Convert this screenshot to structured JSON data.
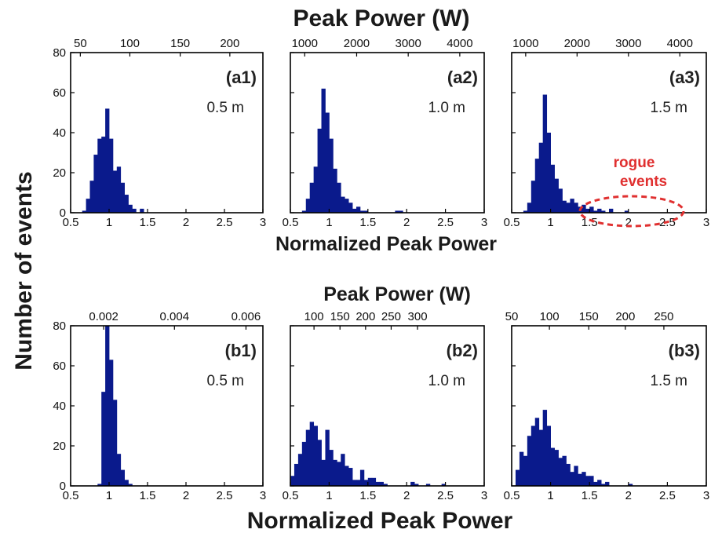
{
  "titles": {
    "top_x": "Peak Power (W)",
    "y": "Number of events",
    "middle_x": "Normalized Peak Power",
    "bottom_top_x": "Peak Power (W)",
    "bottom_x": "Normalized Peak Power"
  },
  "annotation": {
    "line1": "rogue",
    "line2": "events",
    "color": "#e03030"
  },
  "colors": {
    "bar": "#0a1a8c",
    "axis": "#000000"
  },
  "chart_data": [
    {
      "type": "bar",
      "panel": "(a1)",
      "distance": "0.5 m",
      "xlim": [
        0.5,
        3
      ],
      "ylim": [
        0,
        80
      ],
      "x_ticks": [
        "0.5",
        "1",
        "1.5",
        "2",
        "2.5",
        "3"
      ],
      "y_ticks": [
        "0",
        "20",
        "40",
        "60",
        "80"
      ],
      "top_ticks": [
        {
          "v": 0.626,
          "l": "50"
        },
        {
          "v": 1.27,
          "l": "100"
        },
        {
          "v": 1.925,
          "l": "150"
        },
        {
          "v": 2.57,
          "l": "200"
        }
      ],
      "bin_start": 0.65,
      "bin_width": 0.05,
      "values": [
        1,
        7,
        16,
        29,
        37,
        38,
        52,
        37,
        21,
        23,
        15,
        9,
        4,
        2,
        0,
        2
      ]
    },
    {
      "type": "bar",
      "panel": "(a2)",
      "distance": "1.0 m",
      "xlim": [
        0.5,
        3
      ],
      "ylim": [
        0,
        80
      ],
      "x_ticks": [
        "0.5",
        "1",
        "1.5",
        "2",
        "2.5",
        "3"
      ],
      "y_ticks": [],
      "top_ticks": [
        {
          "v": 0.685,
          "l": "1000"
        },
        {
          "v": 1.355,
          "l": "2000"
        },
        {
          "v": 2.02,
          "l": "3000"
        },
        {
          "v": 2.685,
          "l": "4000"
        }
      ],
      "bin_start": 0.6,
      "bin_width": 0.05,
      "values": [
        0,
        1,
        7,
        15,
        23,
        42,
        62,
        50,
        37,
        22,
        15,
        8,
        7,
        5,
        2,
        3,
        1,
        1,
        0,
        0,
        0,
        0,
        0,
        0,
        0,
        1,
        1
      ]
    },
    {
      "type": "bar",
      "panel": "(a3)",
      "distance": "1.5 m",
      "xlim": [
        0.5,
        3
      ],
      "ylim": [
        0,
        80
      ],
      "x_ticks": [
        "0.5",
        "1",
        "1.5",
        "2",
        "2.5",
        "3"
      ],
      "y_ticks": [],
      "top_ticks": [
        {
          "v": 0.68,
          "l": "1000"
        },
        {
          "v": 1.34,
          "l": "2000"
        },
        {
          "v": 2.0,
          "l": "3000"
        },
        {
          "v": 2.66,
          "l": "4000"
        }
      ],
      "bin_start": 0.6,
      "bin_width": 0.05,
      "values": [
        0,
        1,
        5,
        16,
        27,
        35,
        59,
        40,
        24,
        17,
        12,
        6,
        5,
        7,
        5,
        3,
        4,
        2,
        3,
        1,
        2,
        1,
        0,
        2,
        0,
        0,
        0,
        1
      ]
    },
    {
      "type": "bar",
      "panel": "(b1)",
      "distance": "0.5 m",
      "xlim": [
        0.5,
        3
      ],
      "ylim": [
        0,
        80
      ],
      "x_ticks": [
        "0.5",
        "1",
        "1.5",
        "2",
        "2.5",
        "3"
      ],
      "y_ticks": [
        "0",
        "20",
        "40",
        "60",
        "80"
      ],
      "top_ticks": [
        {
          "v": 0.93,
          "l": "0.002"
        },
        {
          "v": 1.85,
          "l": "0.004"
        },
        {
          "v": 2.78,
          "l": "0.006"
        }
      ],
      "bin_start": 0.85,
      "bin_width": 0.05,
      "values": [
        1,
        47,
        80,
        63,
        43,
        16,
        8,
        3,
        1
      ]
    },
    {
      "type": "bar",
      "panel": "(b2)",
      "distance": "1.0 m",
      "xlim": [
        0.5,
        3
      ],
      "ylim": [
        0,
        80
      ],
      "x_ticks": [
        "0.5",
        "1",
        "1.5",
        "2",
        "2.5",
        "3"
      ],
      "y_ticks": [],
      "top_ticks": [
        {
          "v": 0.805,
          "l": "100"
        },
        {
          "v": 1.14,
          "l": "150"
        },
        {
          "v": 1.47,
          "l": "200"
        },
        {
          "v": 1.8,
          "l": "250"
        },
        {
          "v": 2.14,
          "l": "300"
        }
      ],
      "bin_start": 0.5,
      "bin_width": 0.05,
      "values": [
        5,
        11,
        16,
        22,
        28,
        32,
        30,
        23,
        13,
        28,
        18,
        13,
        12,
        16,
        10,
        9,
        3,
        3,
        8,
        3,
        4,
        4,
        2,
        2,
        1,
        0,
        0,
        0,
        0,
        0,
        0,
        2,
        1,
        0,
        0,
        1,
        0,
        0,
        0,
        1
      ]
    },
    {
      "type": "bar",
      "panel": "(b3)",
      "distance": "1.5 m",
      "xlim": [
        0.5,
        3
      ],
      "ylim": [
        0,
        80
      ],
      "x_ticks": [
        "0.5",
        "1",
        "1.5",
        "2",
        "2.5",
        "3"
      ],
      "y_ticks": [],
      "top_ticks": [
        {
          "v": 0.5,
          "l": "50"
        },
        {
          "v": 0.985,
          "l": "100"
        },
        {
          "v": 1.49,
          "l": "150"
        },
        {
          "v": 1.96,
          "l": "200"
        },
        {
          "v": 2.455,
          "l": "250"
        }
      ],
      "bin_start": 0.55,
      "bin_width": 0.05,
      "values": [
        8,
        17,
        15,
        25,
        30,
        34,
        28,
        38,
        30,
        19,
        18,
        14,
        15,
        11,
        7,
        10,
        6,
        7,
        5,
        5,
        2,
        3,
        1,
        2,
        0,
        0,
        0,
        0,
        0,
        1
      ]
    }
  ]
}
